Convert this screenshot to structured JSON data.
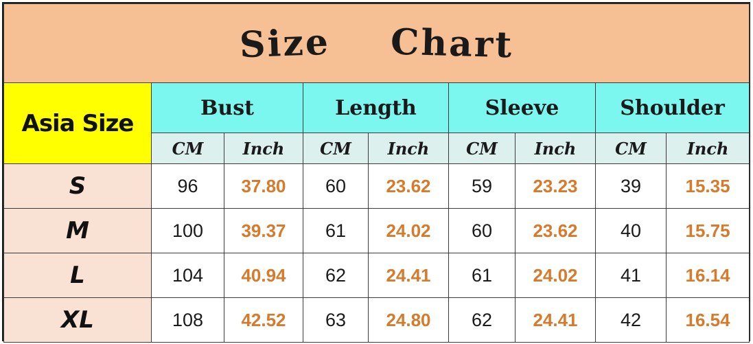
{
  "chart_data": {
    "type": "table",
    "title_words": [
      "Size",
      "Chart"
    ],
    "row_header_label": "Asia Size",
    "groups": [
      "Bust",
      "Length",
      "Sleeve",
      "Shoulder"
    ],
    "units": [
      "CM",
      "Inch"
    ],
    "rows": [
      {
        "size": "S",
        "values": [
          [
            "96",
            "37.80"
          ],
          [
            "60",
            "23.62"
          ],
          [
            "59",
            "23.23"
          ],
          [
            "39",
            "15.35"
          ]
        ]
      },
      {
        "size": "M",
        "values": [
          [
            "100",
            "39.37"
          ],
          [
            "61",
            "24.02"
          ],
          [
            "60",
            "23.62"
          ],
          [
            "40",
            "15.75"
          ]
        ]
      },
      {
        "size": "L",
        "values": [
          [
            "104",
            "40.94"
          ],
          [
            "62",
            "24.41"
          ],
          [
            "61",
            "24.02"
          ],
          [
            "41",
            "16.14"
          ]
        ]
      },
      {
        "size": "XL",
        "values": [
          [
            "108",
            "42.52"
          ],
          [
            "63",
            "24.80"
          ],
          [
            "62",
            "24.41"
          ],
          [
            "42",
            "16.54"
          ]
        ]
      }
    ]
  },
  "colors": {
    "title_bg": "#f7bf94",
    "asia_bg": "#ffff00",
    "group_bg": "#7cf7ef",
    "unit_bg": "#dcf0ee",
    "size_bg": "#f9e2d4",
    "inch_text": "#d67a2c"
  }
}
